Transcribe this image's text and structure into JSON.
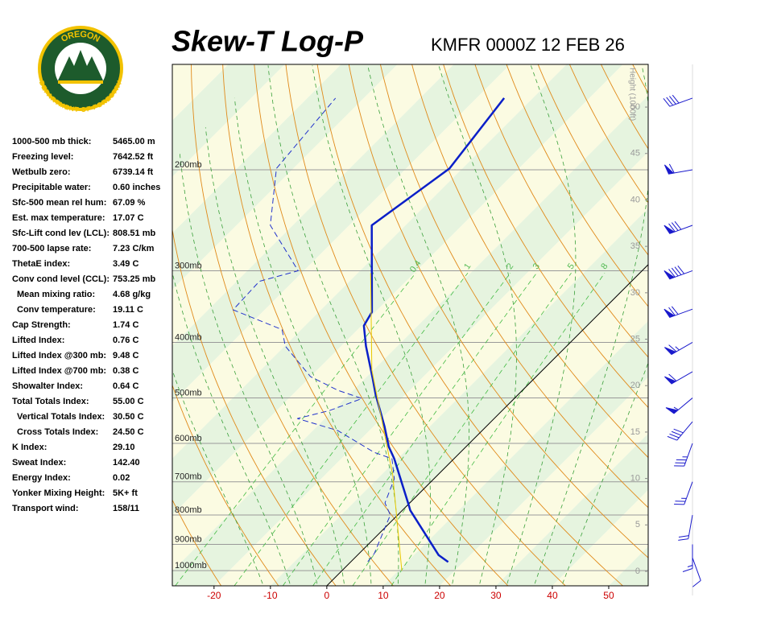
{
  "logo": {
    "top": "OREGON",
    "bottom": "DEPARTMENT OF FORESTRY"
  },
  "indices": [
    {
      "label": "1000-500 mb thick:",
      "value": "5465.00 m"
    },
    {
      "label": "Freezing level:",
      "value": "7642.52 ft"
    },
    {
      "label": "Wetbulb zero:",
      "value": "6739.14 ft"
    },
    {
      "label": "Precipitable water:",
      "value": "0.60 inches"
    },
    {
      "label": "Sfc-500 mean rel hum:",
      "value": "67.09 %"
    },
    {
      "label": "Est. max temperature:",
      "value": "17.07 C"
    },
    {
      "label": "Sfc-Lift cond lev (LCL):",
      "value": "808.51 mb"
    },
    {
      "label": "700-500 lapse rate:",
      "value": "7.23 C/km"
    },
    {
      "label": "ThetaE index:",
      "value": "3.49 C"
    },
    {
      "label": "Conv cond level (CCL):",
      "value": "753.25 mb"
    },
    {
      "label": "Mean mixing ratio:",
      "value": "4.68 g/kg",
      "indent": true
    },
    {
      "label": "Conv temperature:",
      "value": "19.11 C",
      "indent": true
    },
    {
      "label": "Cap Strength:",
      "value": "1.74 C"
    },
    {
      "label": "Lifted Index:",
      "value": "0.76 C"
    },
    {
      "label": "Lifted Index @300 mb:",
      "value": "9.48 C"
    },
    {
      "label": "Lifted Index @700 mb:",
      "value": "0.38 C"
    },
    {
      "label": "Showalter Index:",
      "value": "0.64 C"
    },
    {
      "label": "Total Totals Index:",
      "value": "55.00 C"
    },
    {
      "label": "Vertical Totals Index:",
      "value": "30.50 C",
      "indent": true
    },
    {
      "label": "Cross Totals Index:",
      "value": "24.50 C",
      "indent": true
    },
    {
      "label": "K Index:",
      "value": "29.10"
    },
    {
      "label": "Sweat Index:",
      "value": "142.40"
    },
    {
      "label": "Energy Index:",
      "value": "0.02"
    },
    {
      "label": "Yonker Mixing Height:",
      "value": "5K+ ft"
    },
    {
      "label": "Transport wind:",
      "value": "158/11"
    }
  ],
  "chart_data": {
    "type": "skew-t",
    "title": "Skew-T Log-P",
    "subtitle": "KMFR 0000Z 12 FEB 26",
    "xlim": [
      -27.4,
      57
    ],
    "xticks": [
      -20,
      -10,
      0,
      10,
      20,
      30,
      40,
      50
    ],
    "ylim": [
      1063,
      131
    ],
    "log_y": true,
    "yticks": [
      {
        "value": 200,
        "label": "200mb"
      },
      {
        "value": 300,
        "label": "300mb"
      },
      {
        "value": 400,
        "label": "400mb"
      },
      {
        "value": 500,
        "label": "500mb"
      },
      {
        "value": 600,
        "label": "600mb"
      },
      {
        "value": 700,
        "label": "700mb"
      },
      {
        "value": 800,
        "label": "800mb"
      },
      {
        "value": 900,
        "label": "900mb"
      },
      {
        "value": 1000,
        "label": "1000mb"
      }
    ],
    "y2label": "Height (1000ft)",
    "y2lim": [
      -1.56,
      54.6
    ],
    "y2ticks": [
      0,
      5,
      10,
      15,
      20,
      25,
      30,
      35,
      40,
      45,
      50
    ],
    "mixing_ratio_lines": [
      0.4,
      1,
      2,
      3,
      5,
      8
    ],
    "series": [
      {
        "color": "#0a1fc8",
        "style": "solid",
        "pressure": [
          966,
          940,
          785,
          770,
          638,
          608,
          561,
          493,
          462,
          406,
          374,
          354,
          250,
          199,
          150
        ],
        "values": [
          17.3,
          14.4,
          1.4,
          0.3,
          -10.6,
          -13.7,
          -18,
          -25.3,
          -28.7,
          -35.6,
          -39.6,
          -40.6,
          -56,
          -52.3,
          -55.1
        ]
      },
      {
        "color": "#2233cc",
        "style": "dashed",
        "pressure": [
          965,
          934,
          800,
          762,
          692,
          638,
          622,
          570,
          543,
          526,
          501,
          485,
          459,
          406,
          380,
          351,
          313,
          300,
          250,
          199,
          150
        ],
        "values": [
          3,
          2.7,
          -1.3,
          -4.4,
          -7,
          -11,
          -15.3,
          -25.6,
          -34.9,
          -30.6,
          -27,
          -32.7,
          -40,
          -49.9,
          -53.4,
          -65.6,
          -66,
          -61,
          -74,
          -83,
          -85
        ]
      },
      {
        "color": "#e8c800",
        "style": "thin",
        "pressure": [
          1000,
          681,
          447,
          303
        ],
        "values": [
          10.6,
          -8,
          -30.3,
          -47.7
        ]
      }
    ],
    "winds": {
      "pressure": [
        150,
        200,
        250,
        300,
        350,
        400,
        450,
        500,
        550,
        600,
        700,
        800,
        900,
        950
      ],
      "direction": [
        250,
        260,
        250,
        250,
        250,
        240,
        240,
        230,
        220,
        200,
        200,
        190,
        180,
        160
      ],
      "speed": [
        40,
        60,
        80,
        90,
        70,
        65,
        60,
        55,
        40,
        35,
        25,
        20,
        15,
        10
      ]
    }
  }
}
